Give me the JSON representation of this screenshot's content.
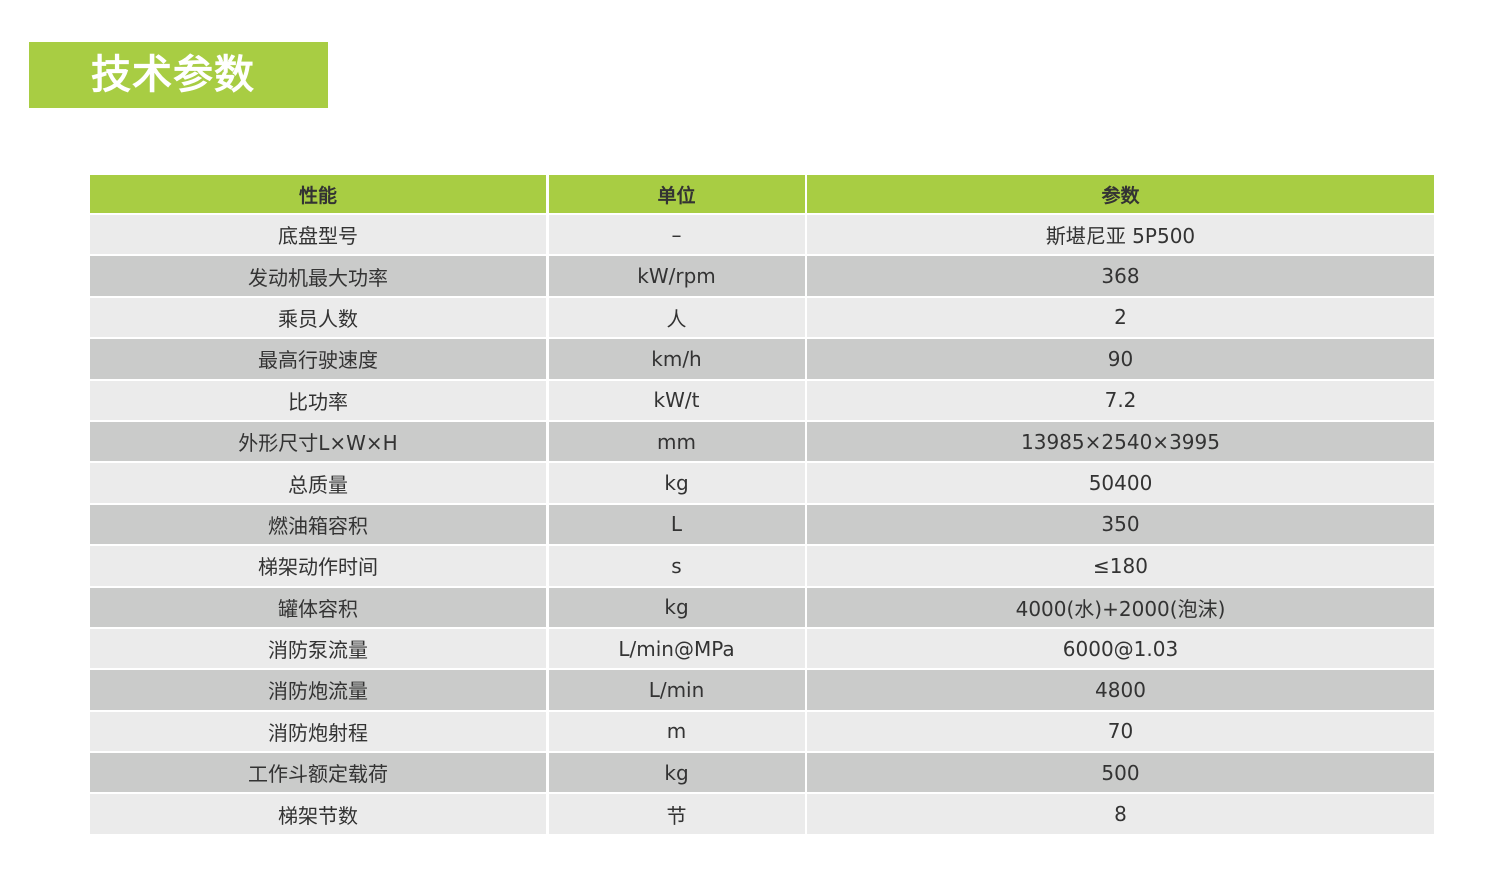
{
  "title": "技术参数",
  "colors": {
    "accent": "#a8cd43",
    "row_light": "#ebebeb",
    "row_dark": "#cacbca"
  },
  "table": {
    "headers": [
      "性能",
      "单位",
      "参数"
    ],
    "rows": [
      [
        "底盘型号",
        "–",
        "斯堪尼亚 5P500"
      ],
      [
        "发动机最大功率",
        "kW/rpm",
        "368"
      ],
      [
        "乘员人数",
        "人",
        "2"
      ],
      [
        "最高行驶速度",
        "km/h",
        "90"
      ],
      [
        "比功率",
        "kW/t",
        "7.2"
      ],
      [
        "外形尺寸L×W×H",
        "mm",
        "13985×2540×3995"
      ],
      [
        "总质量",
        "kg",
        "50400"
      ],
      [
        "燃油箱容积",
        "L",
        "350"
      ],
      [
        "梯架动作时间",
        "s",
        "≤180"
      ],
      [
        "罐体容积",
        "kg",
        "4000(水)+2000(泡沫)"
      ],
      [
        "消防泵流量",
        "L/min@MPa",
        "6000@1.03"
      ],
      [
        "消防炮流量",
        "L/min",
        "4800"
      ],
      [
        "消防炮射程",
        "m",
        "70"
      ],
      [
        "工作斗额定载荷",
        "kg",
        "500"
      ],
      [
        "梯架节数",
        "节",
        "8"
      ]
    ]
  }
}
